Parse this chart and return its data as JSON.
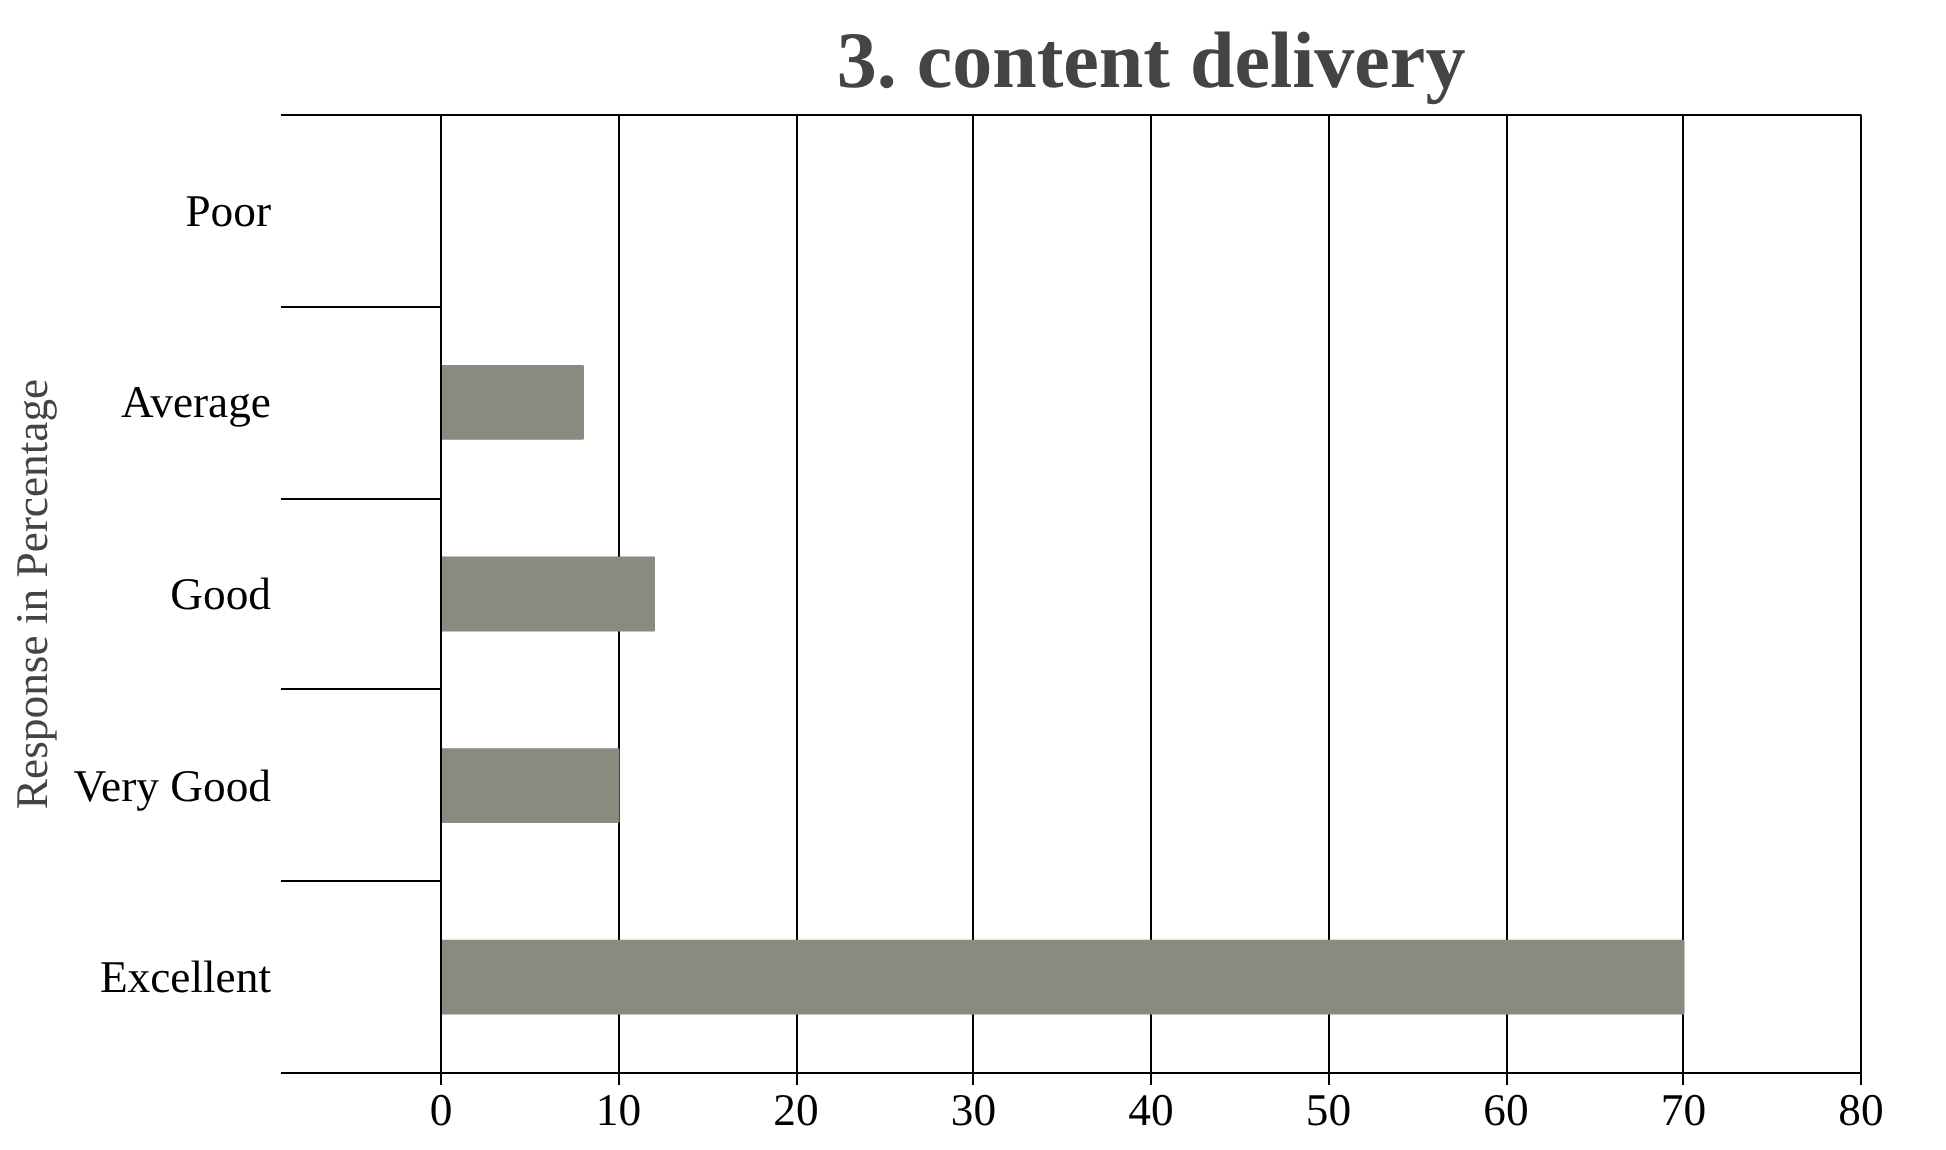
{
  "chart_data": {
    "type": "bar",
    "orientation": "horizontal",
    "title": "3. content delivery",
    "ylabel": "Response in Percentage",
    "categories": [
      "Poor",
      "Average",
      "Good",
      "Very Good",
      "Excellent"
    ],
    "values": [
      0,
      8,
      12,
      10,
      70
    ],
    "color": "#8a8a80",
    "xlim": [
      0,
      80
    ],
    "xticks": [
      0,
      10,
      20,
      30,
      40,
      50,
      60,
      70,
      80
    ],
    "grid": "x"
  }
}
